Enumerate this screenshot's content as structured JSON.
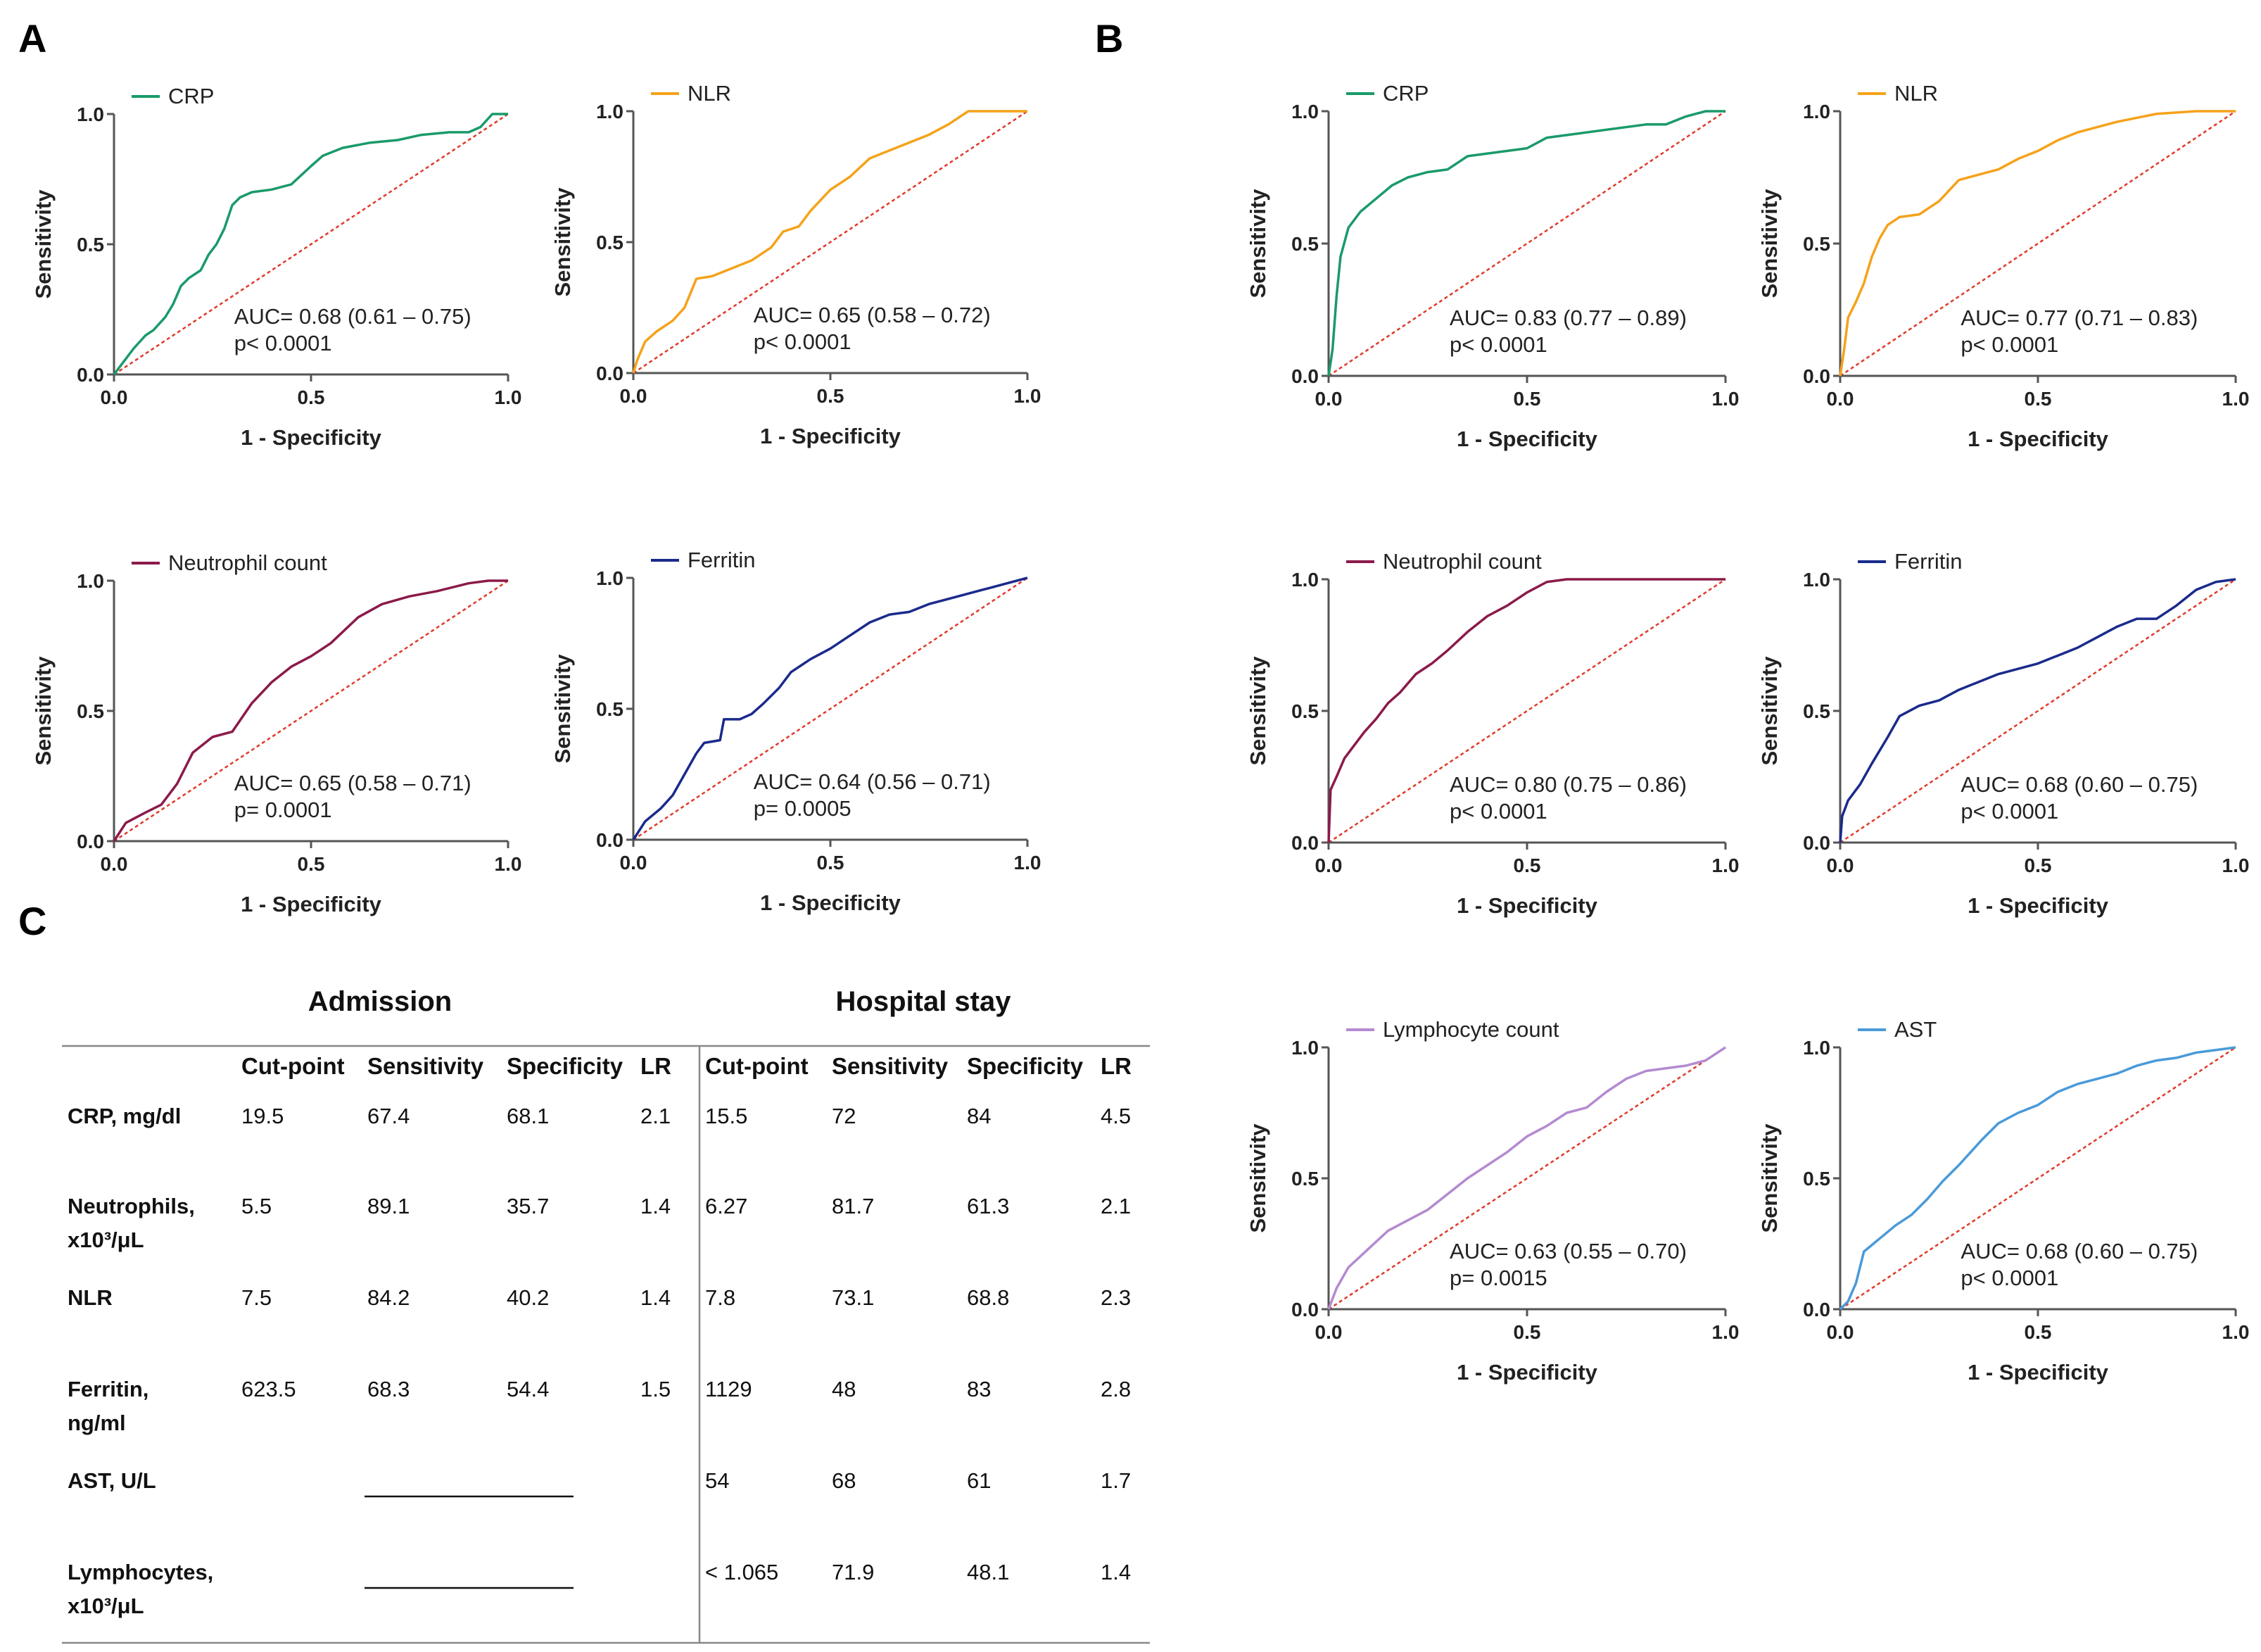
{
  "panel_labels": {
    "a": "A",
    "b": "B",
    "c": "C"
  },
  "colors": {
    "crp": "#1a9a6a",
    "nlr": "#f5a21b",
    "neutrophil": "#8b1a4a",
    "ferritin": "#1a2a8c",
    "lymphocyte": "#b48ad0",
    "ast": "#4a9ad8",
    "reference": "#e03a2a",
    "axis": "#555555"
  },
  "chart_data": [
    {
      "id": "A-CRP",
      "panel": "A",
      "type": "line",
      "legend": "CRP",
      "color_key": "crp",
      "xlabel": "1 - Specificity",
      "ylabel": "Sensitivity",
      "xlim": [
        0,
        1
      ],
      "ylim": [
        0,
        1
      ],
      "xticks": [
        "0.0",
        "0.5",
        "1.0"
      ],
      "yticks": [
        "0.0",
        "0.5",
        "1.0"
      ],
      "annotation": [
        "AUC= 0.68 (0.61 – 0.75)",
        "p< 0.0001"
      ],
      "x": [
        0,
        0.02,
        0.05,
        0.08,
        0.1,
        0.13,
        0.15,
        0.17,
        0.19,
        0.22,
        0.24,
        0.26,
        0.28,
        0.3,
        0.32,
        0.35,
        0.4,
        0.45,
        0.5,
        0.53,
        0.58,
        0.65,
        0.72,
        0.78,
        0.85,
        0.9,
        0.93,
        0.96,
        1.0
      ],
      "y": [
        0,
        0.04,
        0.1,
        0.15,
        0.17,
        0.22,
        0.27,
        0.34,
        0.37,
        0.4,
        0.46,
        0.5,
        0.56,
        0.65,
        0.68,
        0.7,
        0.71,
        0.73,
        0.8,
        0.84,
        0.87,
        0.89,
        0.9,
        0.92,
        0.93,
        0.93,
        0.95,
        1.0,
        1.0
      ]
    },
    {
      "id": "A-NLR",
      "panel": "A",
      "type": "line",
      "legend": "NLR",
      "color_key": "nlr",
      "xlabel": "1 - Specificity",
      "ylabel": "Sensitivity",
      "xlim": [
        0,
        1
      ],
      "ylim": [
        0,
        1
      ],
      "xticks": [
        "0.0",
        "0.5",
        "1.0"
      ],
      "yticks": [
        "0.0",
        "0.5",
        "1.0"
      ],
      "annotation": [
        "AUC= 0.65 (0.58 – 0.72)",
        "p< 0.0001"
      ],
      "x": [
        0,
        0.01,
        0.03,
        0.06,
        0.1,
        0.13,
        0.16,
        0.2,
        0.25,
        0.3,
        0.35,
        0.38,
        0.42,
        0.45,
        0.5,
        0.55,
        0.6,
        0.65,
        0.7,
        0.75,
        0.8,
        0.85,
        0.88,
        0.93,
        1.0
      ],
      "y": [
        0,
        0.05,
        0.12,
        0.16,
        0.2,
        0.25,
        0.36,
        0.37,
        0.4,
        0.43,
        0.48,
        0.54,
        0.56,
        0.62,
        0.7,
        0.75,
        0.82,
        0.85,
        0.88,
        0.91,
        0.95,
        1.0,
        1.0,
        1.0,
        1.0
      ]
    },
    {
      "id": "A-Neutrophil",
      "panel": "A",
      "type": "line",
      "legend": "Neutrophil count",
      "color_key": "neutrophil",
      "xlabel": "1 - Specificity",
      "ylabel": "Sensitivity",
      "xlim": [
        0,
        1
      ],
      "ylim": [
        0,
        1
      ],
      "xticks": [
        "0.0",
        "0.5",
        "1.0"
      ],
      "yticks": [
        "0.0",
        "0.5",
        "1.0"
      ],
      "annotation": [
        "AUC= 0.65 (0.58 – 0.71)",
        "p= 0.0001"
      ],
      "x": [
        0,
        0.03,
        0.08,
        0.12,
        0.16,
        0.2,
        0.25,
        0.3,
        0.35,
        0.4,
        0.45,
        0.5,
        0.55,
        0.62,
        0.68,
        0.75,
        0.82,
        0.9,
        0.95,
        1.0
      ],
      "y": [
        0,
        0.07,
        0.11,
        0.14,
        0.22,
        0.34,
        0.4,
        0.42,
        0.53,
        0.61,
        0.67,
        0.71,
        0.76,
        0.86,
        0.91,
        0.94,
        0.96,
        0.99,
        1.0,
        1.0
      ]
    },
    {
      "id": "A-Ferritin",
      "panel": "A",
      "type": "line",
      "legend": "Ferritin",
      "color_key": "ferritin",
      "xlabel": "1 - Specificity",
      "ylabel": "Sensitivity",
      "xlim": [
        0,
        1
      ],
      "ylim": [
        0,
        1
      ],
      "xticks": [
        "0.0",
        "0.5",
        "1.0"
      ],
      "yticks": [
        "0.0",
        "0.5",
        "1.0"
      ],
      "annotation": [
        "AUC= 0.64 (0.56 – 0.71)",
        "p= 0.0005"
      ],
      "x": [
        0,
        0.03,
        0.07,
        0.1,
        0.13,
        0.16,
        0.18,
        0.22,
        0.23,
        0.27,
        0.3,
        0.33,
        0.37,
        0.4,
        0.45,
        0.5,
        0.55,
        0.6,
        0.65,
        0.7,
        0.75,
        0.8,
        0.85,
        0.9,
        0.95,
        1.0
      ],
      "y": [
        0,
        0.07,
        0.12,
        0.17,
        0.25,
        0.33,
        0.37,
        0.38,
        0.46,
        0.46,
        0.48,
        0.52,
        0.58,
        0.64,
        0.69,
        0.73,
        0.78,
        0.83,
        0.86,
        0.87,
        0.9,
        0.92,
        0.94,
        0.96,
        0.98,
        1.0
      ]
    },
    {
      "id": "B-CRP",
      "panel": "B",
      "type": "line",
      "legend": "CRP",
      "color_key": "crp",
      "xlabel": "1 - Specificity",
      "ylabel": "Sensitivity",
      "xlim": [
        0,
        1
      ],
      "ylim": [
        0,
        1
      ],
      "xticks": [
        "0.0",
        "0.5",
        "1.0"
      ],
      "yticks": [
        "0.0",
        "0.5",
        "1.0"
      ],
      "annotation": [
        "AUC= 0.83 (0.77 – 0.89)",
        "p< 0.0001"
      ],
      "x": [
        0,
        0.01,
        0.02,
        0.03,
        0.05,
        0.08,
        0.12,
        0.16,
        0.2,
        0.25,
        0.3,
        0.35,
        0.4,
        0.45,
        0.5,
        0.55,
        0.6,
        0.7,
        0.8,
        0.85,
        0.9,
        0.95,
        1.0
      ],
      "y": [
        0,
        0.1,
        0.3,
        0.45,
        0.56,
        0.62,
        0.67,
        0.72,
        0.75,
        0.77,
        0.78,
        0.83,
        0.84,
        0.85,
        0.86,
        0.9,
        0.91,
        0.93,
        0.95,
        0.95,
        0.98,
        1.0,
        1.0
      ]
    },
    {
      "id": "B-NLR",
      "panel": "B",
      "type": "line",
      "legend": "NLR",
      "color_key": "nlr",
      "xlabel": "1 - Specificity",
      "ylabel": "Sensitivity",
      "xlim": [
        0,
        1
      ],
      "ylim": [
        0,
        1
      ],
      "xticks": [
        "0.0",
        "0.5",
        "1.0"
      ],
      "yticks": [
        "0.0",
        "0.5",
        "1.0"
      ],
      "annotation": [
        "AUC= 0.77 (0.71 – 0.83)",
        "p< 0.0001"
      ],
      "x": [
        0,
        0.01,
        0.02,
        0.04,
        0.06,
        0.08,
        0.1,
        0.12,
        0.15,
        0.2,
        0.25,
        0.3,
        0.35,
        0.4,
        0.45,
        0.5,
        0.55,
        0.6,
        0.7,
        0.8,
        0.9,
        1.0
      ],
      "y": [
        0,
        0.1,
        0.22,
        0.28,
        0.35,
        0.45,
        0.52,
        0.57,
        0.6,
        0.61,
        0.66,
        0.74,
        0.76,
        0.78,
        0.82,
        0.85,
        0.89,
        0.92,
        0.96,
        0.99,
        1.0,
        1.0
      ]
    },
    {
      "id": "B-Neutrophil",
      "panel": "B",
      "type": "line",
      "legend": "Neutrophil count",
      "color_key": "neutrophil",
      "xlabel": "1 - Specificity",
      "ylabel": "Sensitivity",
      "xlim": [
        0,
        1
      ],
      "ylim": [
        0,
        1
      ],
      "xticks": [
        "0.0",
        "0.5",
        "1.0"
      ],
      "yticks": [
        "0.0",
        "0.5",
        "1.0"
      ],
      "annotation": [
        "AUC= 0.80 (0.75 – 0.86)",
        "p< 0.0001"
      ],
      "x": [
        0,
        0.005,
        0.02,
        0.04,
        0.06,
        0.09,
        0.12,
        0.15,
        0.18,
        0.22,
        0.26,
        0.3,
        0.35,
        0.4,
        0.45,
        0.5,
        0.55,
        0.6,
        0.7,
        0.8,
        0.9,
        1.0
      ],
      "y": [
        0,
        0.2,
        0.25,
        0.32,
        0.36,
        0.42,
        0.47,
        0.53,
        0.57,
        0.64,
        0.68,
        0.73,
        0.8,
        0.86,
        0.9,
        0.95,
        0.99,
        1.0,
        1.0,
        1.0,
        1.0,
        1.0
      ]
    },
    {
      "id": "B-Ferritin",
      "panel": "B",
      "type": "line",
      "legend": "Ferritin",
      "color_key": "ferritin",
      "xlabel": "1 - Specificity",
      "ylabel": "Sensitivity",
      "xlim": [
        0,
        1
      ],
      "ylim": [
        0,
        1
      ],
      "xticks": [
        "0.0",
        "0.5",
        "1.0"
      ],
      "yticks": [
        "0.0",
        "0.5",
        "1.0"
      ],
      "annotation": [
        "AUC= 0.68 (0.60 – 0.75)",
        "p< 0.0001"
      ],
      "x": [
        0,
        0.005,
        0.02,
        0.05,
        0.08,
        0.12,
        0.15,
        0.2,
        0.25,
        0.3,
        0.35,
        0.4,
        0.45,
        0.5,
        0.55,
        0.6,
        0.65,
        0.7,
        0.75,
        0.8,
        0.85,
        0.9,
        0.95,
        1.0
      ],
      "y": [
        0,
        0.1,
        0.16,
        0.22,
        0.3,
        0.4,
        0.48,
        0.52,
        0.54,
        0.58,
        0.61,
        0.64,
        0.66,
        0.68,
        0.71,
        0.74,
        0.78,
        0.82,
        0.85,
        0.85,
        0.9,
        0.96,
        0.99,
        1.0
      ]
    },
    {
      "id": "B-Lymphocyte",
      "panel": "B",
      "type": "line",
      "legend": "Lymphocyte count",
      "color_key": "lymphocyte",
      "xlabel": "1 - Specificity",
      "ylabel": "Sensitivity",
      "xlim": [
        0,
        1
      ],
      "ylim": [
        0,
        1
      ],
      "xticks": [
        "0.0",
        "0.5",
        "1.0"
      ],
      "yticks": [
        "0.0",
        "0.5",
        "1.0"
      ],
      "annotation": [
        "AUC= 0.63 (0.55 – 0.70)",
        "p= 0.0015"
      ],
      "x": [
        0,
        0.02,
        0.05,
        0.1,
        0.15,
        0.2,
        0.25,
        0.3,
        0.35,
        0.4,
        0.45,
        0.5,
        0.55,
        0.6,
        0.65,
        0.7,
        0.75,
        0.8,
        0.85,
        0.9,
        0.95,
        1.0
      ],
      "y": [
        0,
        0.08,
        0.16,
        0.23,
        0.3,
        0.34,
        0.38,
        0.44,
        0.5,
        0.55,
        0.6,
        0.66,
        0.7,
        0.75,
        0.77,
        0.83,
        0.88,
        0.91,
        0.92,
        0.93,
        0.95,
        1.0
      ]
    },
    {
      "id": "B-AST",
      "panel": "B",
      "type": "line",
      "legend": "AST",
      "color_key": "ast",
      "xlabel": "1 - Specificity",
      "ylabel": "Sensitivity",
      "xlim": [
        0,
        1
      ],
      "ylim": [
        0,
        1
      ],
      "xticks": [
        "0.0",
        "0.5",
        "1.0"
      ],
      "yticks": [
        "0.0",
        "0.5",
        "1.0"
      ],
      "annotation": [
        "AUC= 0.68 (0.60 – 0.75)",
        "p< 0.0001"
      ],
      "x": [
        0,
        0.02,
        0.04,
        0.06,
        0.1,
        0.14,
        0.18,
        0.22,
        0.26,
        0.3,
        0.33,
        0.36,
        0.4,
        0.45,
        0.5,
        0.55,
        0.6,
        0.65,
        0.7,
        0.75,
        0.8,
        0.85,
        0.9,
        0.95,
        1.0
      ],
      "y": [
        0,
        0.03,
        0.1,
        0.22,
        0.27,
        0.32,
        0.36,
        0.42,
        0.49,
        0.55,
        0.6,
        0.65,
        0.71,
        0.75,
        0.78,
        0.83,
        0.86,
        0.88,
        0.9,
        0.93,
        0.95,
        0.96,
        0.98,
        0.99,
        1.0
      ]
    }
  ],
  "table": {
    "groups": [
      "Admission",
      "Hospital stay"
    ],
    "headers": [
      "Cut-point",
      "Sensitivity",
      "Specificity",
      "LR",
      "Cut-point",
      "Sensitivity",
      "Specificity",
      "LR"
    ],
    "rows": [
      {
        "label": [
          "CRP, mg/dl"
        ],
        "values": [
          "19.5",
          "67.4",
          "68.1",
          "2.1",
          "15.5",
          "72",
          "84",
          "4.5"
        ]
      },
      {
        "label": [
          "Neutrophils,",
          "x10³/μL"
        ],
        "values": [
          "5.5",
          "89.1",
          "35.7",
          "1.4",
          "6.27",
          "81.7",
          "61.3",
          "2.1"
        ]
      },
      {
        "label": [
          "NLR"
        ],
        "values": [
          "7.5",
          "84.2",
          "40.2",
          "1.4",
          "7.8",
          "73.1",
          "68.8",
          "2.3"
        ]
      },
      {
        "label": [
          "Ferritin,",
          "ng/ml"
        ],
        "values": [
          "623.5",
          "68.3",
          "54.4",
          "1.5",
          "1129",
          "48",
          "83",
          "2.8"
        ]
      },
      {
        "label": [
          "AST, U/L"
        ],
        "values": [
          "",
          "",
          "",
          "",
          "54",
          "68",
          "61",
          "1.7"
        ]
      },
      {
        "label": [
          "Lymphocytes,",
          "x10³/μL"
        ],
        "values": [
          "",
          "",
          "",
          "",
          "< 1.065",
          "71.9",
          "48.1",
          "1.4"
        ]
      }
    ]
  }
}
